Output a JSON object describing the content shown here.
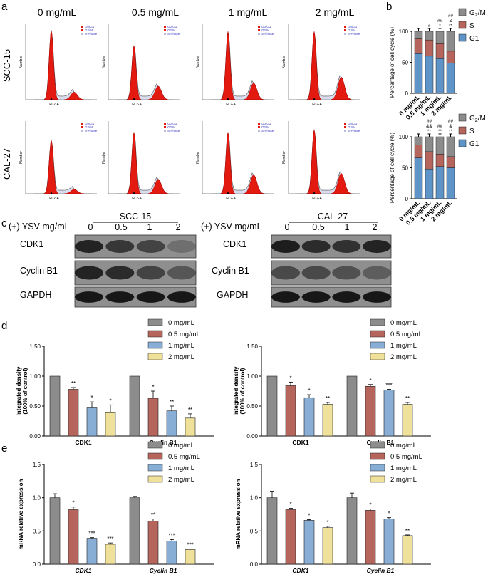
{
  "panel_labels": {
    "a": "a",
    "b": "b",
    "c": "c",
    "d": "d",
    "e": "e"
  },
  "panel_a": {
    "concentrations": [
      "0 mg/mL",
      "0.5 mg/mL",
      "1 mg/mL",
      "2 mg/mL"
    ],
    "rows": [
      "SCC-15",
      "CAL-27"
    ],
    "legend": [
      "G0/G1",
      "G2/M",
      "S-Phase"
    ],
    "x_label": "FL2-A",
    "y_label": "Number"
  },
  "panel_c": {
    "treatment_label": "(+) YSV mg/mL",
    "blots": [
      {
        "cell_line": "SCC-15",
        "lanes": [
          "0",
          "0.5",
          "1",
          "2"
        ],
        "proteins": [
          "CDK1",
          "Cyclin B1",
          "GAPDH"
        ]
      },
      {
        "cell_line": "CAL-27",
        "lanes": [
          "0",
          "0.5",
          "1",
          "2"
        ],
        "proteins": [
          "CDK1",
          "Cyclin B1",
          "GAPDH"
        ]
      }
    ]
  },
  "colors": {
    "c0": "#8c8c8c",
    "c05": "#b5655c",
    "c1": "#88aed6",
    "c2": "#efe09a",
    "sphase": "#5f94c8"
  },
  "chart_data": [
    {
      "type": "bar",
      "stacked": true,
      "panel": "b-top",
      "ylabel": "Percentage of cell cycle (%)",
      "categories": [
        "0 mg/mL",
        "0.5 mg/mL",
        "1 mg/mL",
        "2 mg/mL"
      ],
      "ylim": [
        0,
        100
      ],
      "series": [
        {
          "name": "G1",
          "values": [
            64,
            60,
            56,
            49
          ]
        },
        {
          "name": "S",
          "values": [
            24,
            26,
            24,
            19
          ]
        },
        {
          "name": "G2/M",
          "values": [
            12,
            14,
            20,
            32
          ]
        }
      ],
      "annotations": [
        [],
        [
          "#"
        ],
        [
          "##",
          "*"
        ],
        [
          "##",
          "&",
          "**"
        ]
      ],
      "legend": {
        "items": [
          {
            "base": "G",
            "sub": "2",
            "tail": "/M"
          },
          {
            "base": "S"
          },
          {
            "base": "G1"
          }
        ],
        "position": "top-right"
      }
    },
    {
      "type": "bar",
      "stacked": true,
      "panel": "b-bottom",
      "ylabel": "Percentage of cell cycle (%)",
      "categories": [
        "0 mg/mL",
        "0.5 mg/mL",
        "1 mg/mL",
        "2 mg/mL"
      ],
      "ylim": [
        0,
        100
      ],
      "series": [
        {
          "name": "G1",
          "values": [
            66,
            48,
            52,
            50
          ]
        },
        {
          "name": "S",
          "values": [
            21,
            28,
            20,
            18
          ]
        },
        {
          "name": "G2/M",
          "values": [
            13,
            24,
            28,
            32
          ]
        }
      ],
      "annotations": [
        [],
        [
          "##",
          "&&",
          "**"
        ],
        [
          "##",
          "**"
        ],
        [
          "##",
          "&",
          "**"
        ]
      ],
      "legend": {
        "items": [
          {
            "base": "G",
            "sub": "2",
            "tail": "/M"
          },
          {
            "base": "S"
          },
          {
            "base": "G1"
          }
        ],
        "position": "top-right"
      }
    },
    {
      "type": "bar",
      "panel": "d-left",
      "ylabel": "Integrated density (100% of control)",
      "categories": [
        "CDK1",
        "Cyclin B1"
      ],
      "ylim": [
        0,
        1.5
      ],
      "yticks": [
        "0.00",
        "0.50",
        "1.00",
        "1.50"
      ],
      "series": [
        {
          "name": "0 mg/mL",
          "values": [
            1.0,
            1.0
          ],
          "errors": [
            0,
            0
          ],
          "sig": [
            "",
            ""
          ]
        },
        {
          "name": "0.5 mg/mL",
          "values": [
            0.78,
            0.63
          ],
          "errors": [
            0.03,
            0.12
          ],
          "sig": [
            "**",
            "*"
          ]
        },
        {
          "name": "1 mg/mL",
          "values": [
            0.47,
            0.42
          ],
          "errors": [
            0.1,
            0.08
          ],
          "sig": [
            "*",
            "**"
          ]
        },
        {
          "name": "2 mg/mL",
          "values": [
            0.39,
            0.3
          ],
          "errors": [
            0.13,
            0.07
          ],
          "sig": [
            "*",
            "**"
          ]
        }
      ],
      "italic_categories": false
    },
    {
      "type": "bar",
      "panel": "d-right",
      "ylabel": "Integrated density (100% of control)",
      "categories": [
        "CDK1",
        "Cyclin B1"
      ],
      "ylim": [
        0,
        1.5
      ],
      "yticks": [
        "0.00",
        "0.50",
        "1.00",
        "1.50"
      ],
      "series": [
        {
          "name": "0 mg/mL",
          "values": [
            1.0,
            1.0
          ],
          "errors": [
            0,
            0
          ],
          "sig": [
            "",
            ""
          ]
        },
        {
          "name": "0.5 mg/mL",
          "values": [
            0.84,
            0.83
          ],
          "errors": [
            0.06,
            0.03
          ],
          "sig": [
            "*",
            "*"
          ]
        },
        {
          "name": "1 mg/mL",
          "values": [
            0.64,
            0.77
          ],
          "errors": [
            0.05,
            0.01
          ],
          "sig": [
            "*",
            "***"
          ]
        },
        {
          "name": "2 mg/mL",
          "values": [
            0.53,
            0.53
          ],
          "errors": [
            0.03,
            0.03
          ],
          "sig": [
            "**",
            "**"
          ]
        }
      ],
      "italic_categories": false
    },
    {
      "type": "bar",
      "panel": "e-left",
      "ylabel": "mRNA relative expression",
      "categories": [
        "CDK1",
        "Cyclin B1"
      ],
      "ylim": [
        0,
        1.5
      ],
      "yticks": [
        "0.0",
        "0.5",
        "1.0",
        "1.5"
      ],
      "series": [
        {
          "name": "0 mg/mL",
          "values": [
            1.0,
            1.0
          ],
          "errors": [
            0.06,
            0.02
          ],
          "sig": [
            "",
            ""
          ]
        },
        {
          "name": "0.5 mg/mL",
          "values": [
            0.82,
            0.65
          ],
          "errors": [
            0.04,
            0.03
          ],
          "sig": [
            "*",
            "**"
          ]
        },
        {
          "name": "1 mg/mL",
          "values": [
            0.39,
            0.35
          ],
          "errors": [
            0.01,
            0.02
          ],
          "sig": [
            "***",
            "***"
          ]
        },
        {
          "name": "2 mg/mL",
          "values": [
            0.3,
            0.22
          ],
          "errors": [
            0.02,
            0.01
          ],
          "sig": [
            "***",
            "***"
          ]
        }
      ],
      "italic_categories": true
    },
    {
      "type": "bar",
      "panel": "e-right",
      "ylabel": "mRNA relative expression",
      "categories": [
        "CDK1",
        "Cyclin B1"
      ],
      "ylim": [
        0,
        1.5
      ],
      "yticks": [
        "0.0",
        "0.5",
        "1.0",
        "1.5"
      ],
      "series": [
        {
          "name": "0 mg/mL",
          "values": [
            1.0,
            1.0
          ],
          "errors": [
            0.1,
            0.07
          ],
          "sig": [
            "",
            ""
          ]
        },
        {
          "name": "0.5 mg/mL",
          "values": [
            0.82,
            0.81
          ],
          "errors": [
            0.02,
            0.02
          ],
          "sig": [
            "*",
            "*"
          ]
        },
        {
          "name": "1 mg/mL",
          "values": [
            0.66,
            0.68
          ],
          "errors": [
            0.01,
            0.02
          ],
          "sig": [
            "*",
            "*"
          ]
        },
        {
          "name": "2 mg/mL",
          "values": [
            0.55,
            0.43
          ],
          "errors": [
            0.02,
            0.01
          ],
          "sig": [
            "*",
            "**"
          ]
        }
      ],
      "italic_categories": true
    }
  ]
}
